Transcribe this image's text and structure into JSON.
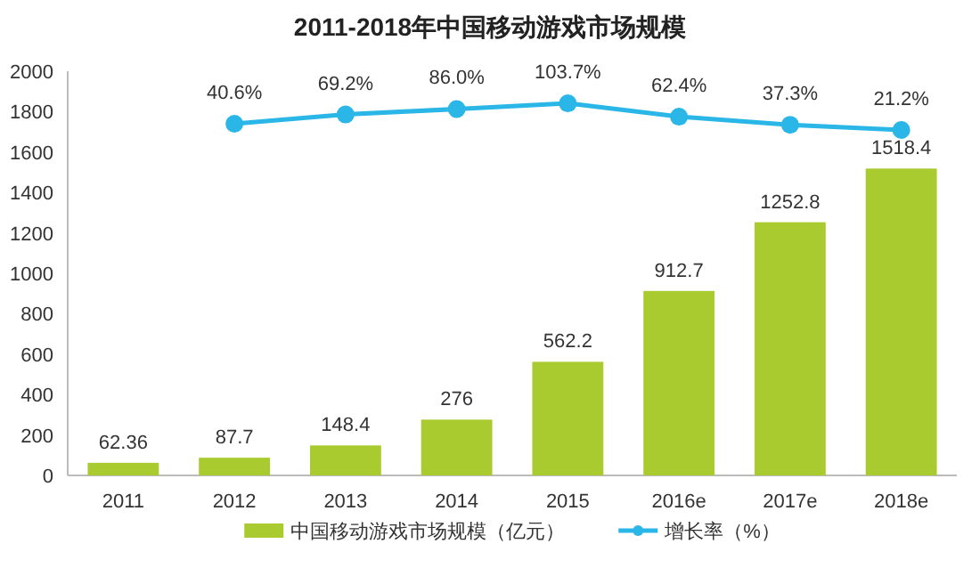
{
  "chart_data": {
    "type": "bar",
    "title": "2011-2018年中国移动游戏市场规模",
    "categories": [
      "2011",
      "2012",
      "2013",
      "2014",
      "2015",
      "2016e",
      "2017e",
      "2018e"
    ],
    "series": [
      {
        "name": "中国移动游戏市场规模（亿元）",
        "color": "#a9cb2f",
        "values": [
          62.36,
          87.7,
          148.4,
          276,
          562.2,
          912.7,
          1252.8,
          1518.4
        ],
        "value_labels": [
          "62.36",
          "87.7",
          "148.4",
          "276",
          "562.2",
          "912.7",
          "1252.8",
          "1518.4"
        ]
      },
      {
        "name": "增长率（%）",
        "type": "line",
        "axis": "y2",
        "color": "#2ab7e8",
        "marker": "circle",
        "values": [
          null,
          40.6,
          69.2,
          86.0,
          103.7,
          62.4,
          37.3,
          21.2
        ],
        "value_labels": [
          null,
          "40.6%",
          "69.2%",
          "86.0%",
          "103.7%",
          "62.4%",
          "37.3%",
          "21.2%"
        ]
      }
    ],
    "ylim": [
      0,
      2000
    ],
    "yticks": [
      0,
      200,
      400,
      600,
      800,
      1000,
      1200,
      1400,
      1600,
      1800,
      2000
    ],
    "y2lim": [
      -1047,
      203
    ],
    "tick_labels": "xy",
    "grid": false,
    "legend": "bottom"
  }
}
